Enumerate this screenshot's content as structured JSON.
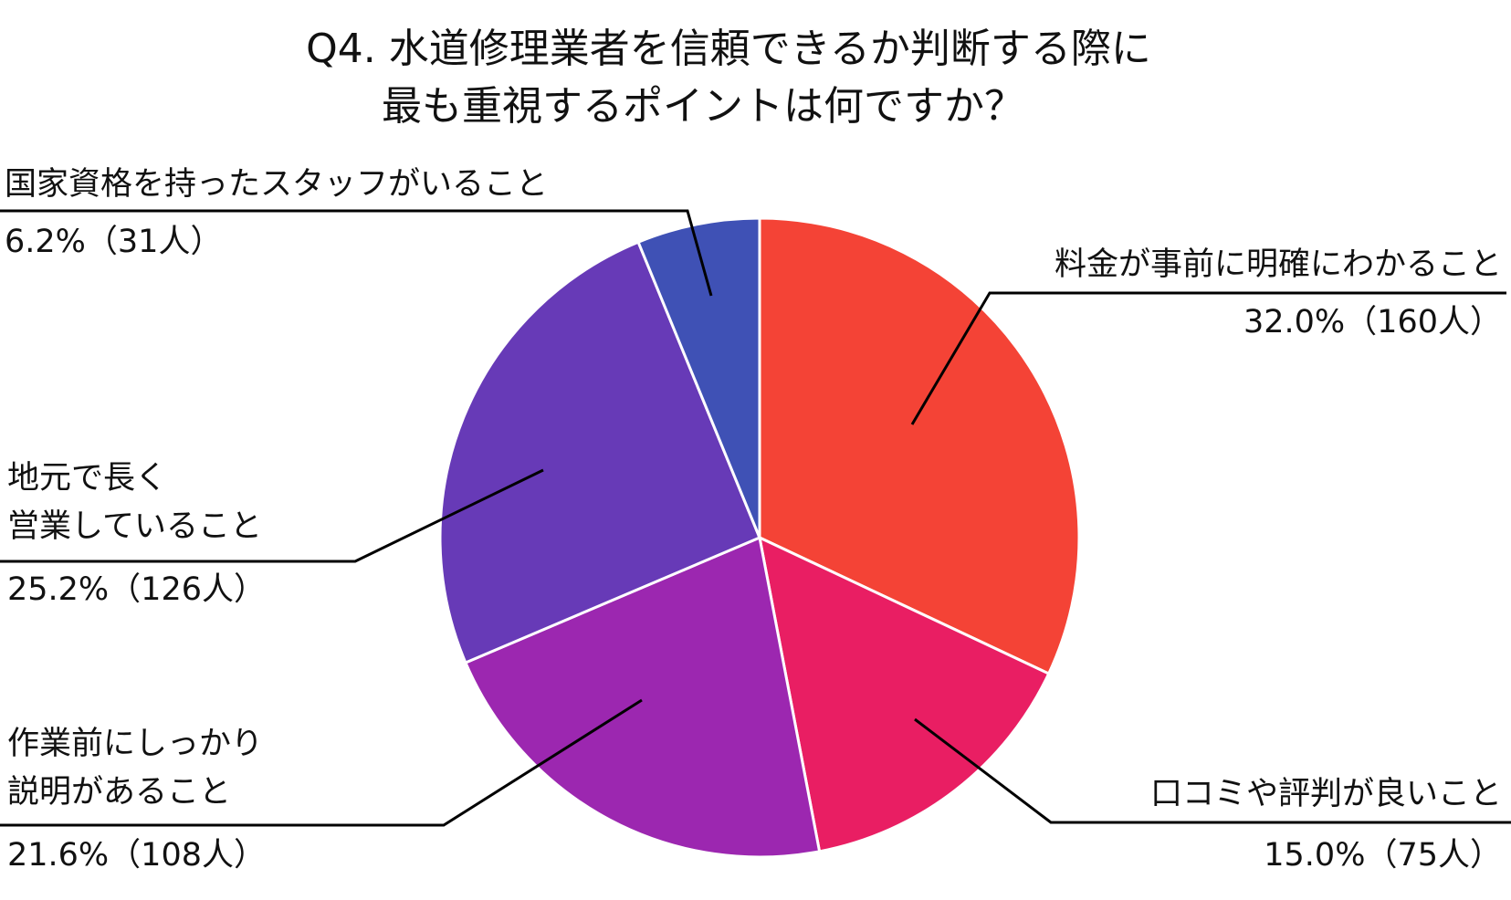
{
  "chart_data": {
    "type": "pie",
    "title": [
      "Q4. 水道修理業者を信頼できるか判断する際に",
      "最も重視するポイントは何ですか？"
    ],
    "start_angle": "top",
    "direction": "clockwise",
    "slices": [
      {
        "label": [
          "料金が事前に明確にわかること"
        ],
        "value": 32.0,
        "count": 160,
        "value_label": "32.0%（160人）",
        "color": "#F44336"
      },
      {
        "label": [
          "口コミや評判が良いこと"
        ],
        "value": 15.0,
        "count": 75,
        "value_label": "15.0%（75人）",
        "color": "#E91E63"
      },
      {
        "label": [
          "作業前にしっかり",
          "説明があること"
        ],
        "value": 21.6,
        "count": 108,
        "value_label": "21.6%（108人）",
        "color": "#9C27B0"
      },
      {
        "label": [
          "地元で長く",
          "営業していること"
        ],
        "value": 25.2,
        "count": 126,
        "value_label": "25.2%（126人）",
        "color": "#673AB7"
      },
      {
        "label": [
          "国家資格を持ったスタッフがいること"
        ],
        "value": 6.2,
        "count": 31,
        "value_label": "6.2%（31人）",
        "color": "#3F51B5"
      }
    ]
  }
}
